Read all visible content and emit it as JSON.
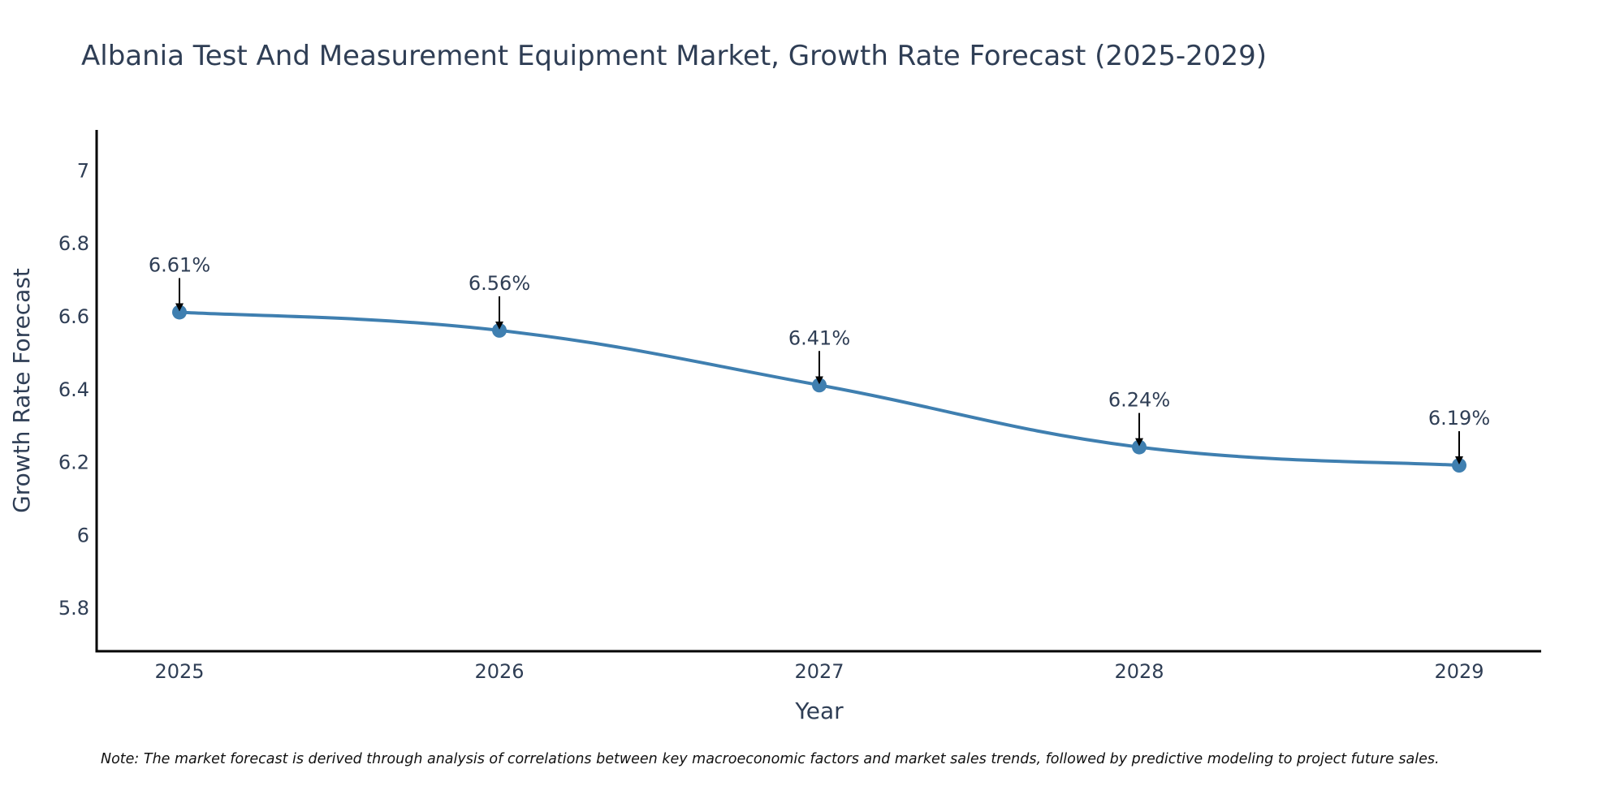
{
  "chart_data": {
    "type": "line",
    "title": "Albania Test And Measurement Equipment Market, Growth Rate Forecast (2025-2029)",
    "xlabel": "Year",
    "ylabel": "Growth Rate Forecast",
    "categories": [
      "2025",
      "2026",
      "2027",
      "2028",
      "2029"
    ],
    "series": [
      {
        "name": "Growth Rate Forecast",
        "values": [
          6.61,
          6.56,
          6.41,
          6.24,
          6.19
        ],
        "labels": [
          "6.61%",
          "6.56%",
          "6.41%",
          "6.24%",
          "6.19%"
        ]
      }
    ],
    "ylim": [
      5.68,
      7.11
    ],
    "yticks": [
      5.8,
      6,
      6.2,
      6.4,
      6.6,
      6.8,
      7
    ],
    "ytick_labels": [
      "5.8",
      "6",
      "6.2",
      "6.4",
      "6.6",
      "6.8",
      "7"
    ],
    "grid": false,
    "line_color": "#3f7fb0",
    "text_color": "#2f3e55",
    "note": "Note: The market forecast is derived through analysis of correlations between key macroeconomic factors and market sales trends, followed by predictive modeling to project future sales."
  }
}
